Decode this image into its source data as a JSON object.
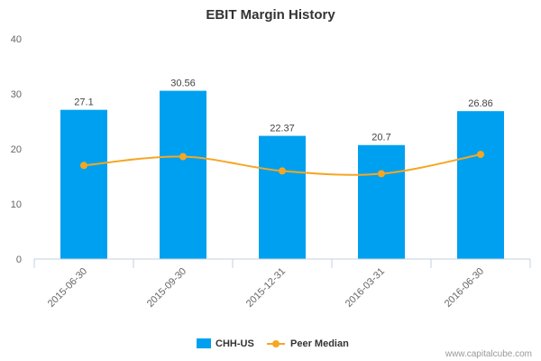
{
  "chart_data": {
    "type": "bar",
    "title": "EBIT Margin History",
    "categories": [
      "2015-06-30",
      "2015-09-30",
      "2015-12-31",
      "2016-03-31",
      "2016-06-30"
    ],
    "series": [
      {
        "name": "CHH-US",
        "kind": "bar",
        "values": [
          27.1,
          30.56,
          22.37,
          20.7,
          26.86
        ],
        "labels": [
          "27.1",
          "30.56",
          "22.37",
          "20.7",
          "26.86"
        ],
        "color": "#00a0f0"
      },
      {
        "name": "Peer Median",
        "kind": "line",
        "values": [
          17.0,
          18.6,
          16.0,
          15.5,
          19.0
        ],
        "color": "#f6a623"
      }
    ],
    "ylim": [
      0,
      40
    ],
    "yticks": [
      0,
      10,
      20,
      30,
      40
    ],
    "grid": false,
    "legend": "bottom-center"
  },
  "credit": "www.capitalcube.com"
}
